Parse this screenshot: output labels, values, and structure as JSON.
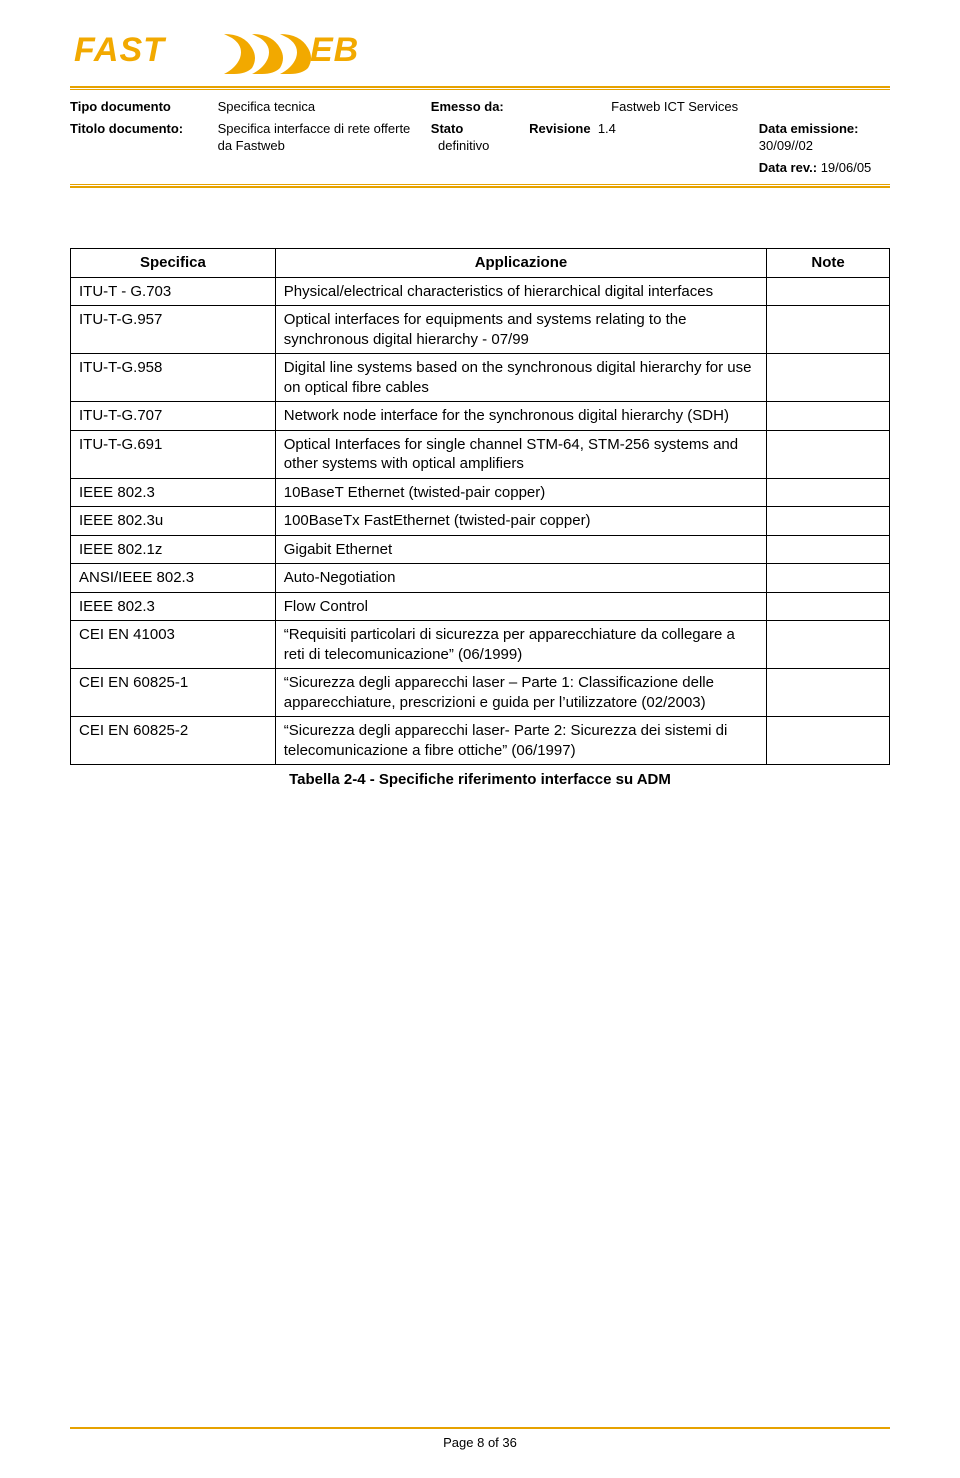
{
  "brand": {
    "name": "FASTWEB",
    "logo_fill": "#f2a900",
    "rule_color": "#e6a200"
  },
  "header": {
    "rows": [
      {
        "c1_label": "Tipo documento",
        "c1_value": "Specifica tecnica",
        "c2_label": "Emesso da:",
        "c2_value": "",
        "c3_value": "Fastweb ICT Services",
        "c4_label": "",
        "c4_value": ""
      },
      {
        "c1_label": "Titolo documento:",
        "c1_value": "Specifica interfacce di rete offerte da Fastweb",
        "c2_label": "Stato",
        "c2_value": "definitivo",
        "c3_label": "Revisione",
        "c3_value": "1.4",
        "c4_label": "Data emissione:",
        "c4_value": "30/09//02"
      },
      {
        "c1_label": "",
        "c1_value": "",
        "c2_label": "",
        "c2_value": "",
        "c3_label": "",
        "c3_value": "",
        "c4_label": "Data rev.:",
        "c4_value": "19/06/05"
      }
    ]
  },
  "table": {
    "headers": {
      "spec": "Specifica",
      "app": "Applicazione",
      "note": "Note"
    },
    "rows": [
      {
        "spec": "ITU-T - G.703",
        "app": "Physical/electrical characteristics of hierarchical digital interfaces",
        "note": ""
      },
      {
        "spec": "ITU-T-G.957",
        "app": "Optical interfaces for equipments and systems relating to the synchronous digital hierarchy - 07/99",
        "note": ""
      },
      {
        "spec": "ITU-T-G.958",
        "app": "Digital line systems based on the synchronous digital hierarchy for use on optical fibre cables",
        "note": ""
      },
      {
        "spec": "ITU-T-G.707",
        "app": "Network node interface for the synchronous digital hierarchy (SDH)",
        "note": ""
      },
      {
        "spec": "ITU-T-G.691",
        "app": "Optical Interfaces for single channel STM-64, STM-256 systems and other systems with optical amplifiers",
        "note": ""
      },
      {
        "spec": "IEEE 802.3",
        "app": "10BaseT Ethernet (twisted-pair copper)",
        "note": ""
      },
      {
        "spec": "IEEE 802.3u",
        "app": "100BaseTx FastEthernet (twisted-pair copper)",
        "note": ""
      },
      {
        "spec": "IEEE 802.1z",
        "app": "Gigabit Ethernet",
        "note": ""
      },
      {
        "spec": "ANSI/IEEE 802.3",
        "app": "Auto-Negotiation",
        "note": ""
      },
      {
        "spec": "IEEE 802.3",
        "app": "Flow Control",
        "note": ""
      },
      {
        "spec": "CEI EN 41003",
        "app": "“Requisiti particolari di sicurezza per apparecchiature da collegare a reti di telecomunicazione” (06/1999)",
        "note": ""
      },
      {
        "spec": "CEI EN 60825-1",
        "app": "“Sicurezza degli apparecchi laser – Parte 1: Classificazione delle apparecchiature, prescrizioni e guida per l’utilizzatore (02/2003)",
        "note": ""
      },
      {
        "spec": "CEI EN 60825-2",
        "app": "“Sicurezza degli apparecchi laser- Parte 2: Sicurezza dei sistemi di telecomunicazione a fibre ottiche” (06/1997)",
        "note": ""
      }
    ],
    "caption": "Tabella 2-4 - Specifiche riferimento interfacce su ADM"
  },
  "footer": {
    "page": "Page 8 of 36"
  }
}
